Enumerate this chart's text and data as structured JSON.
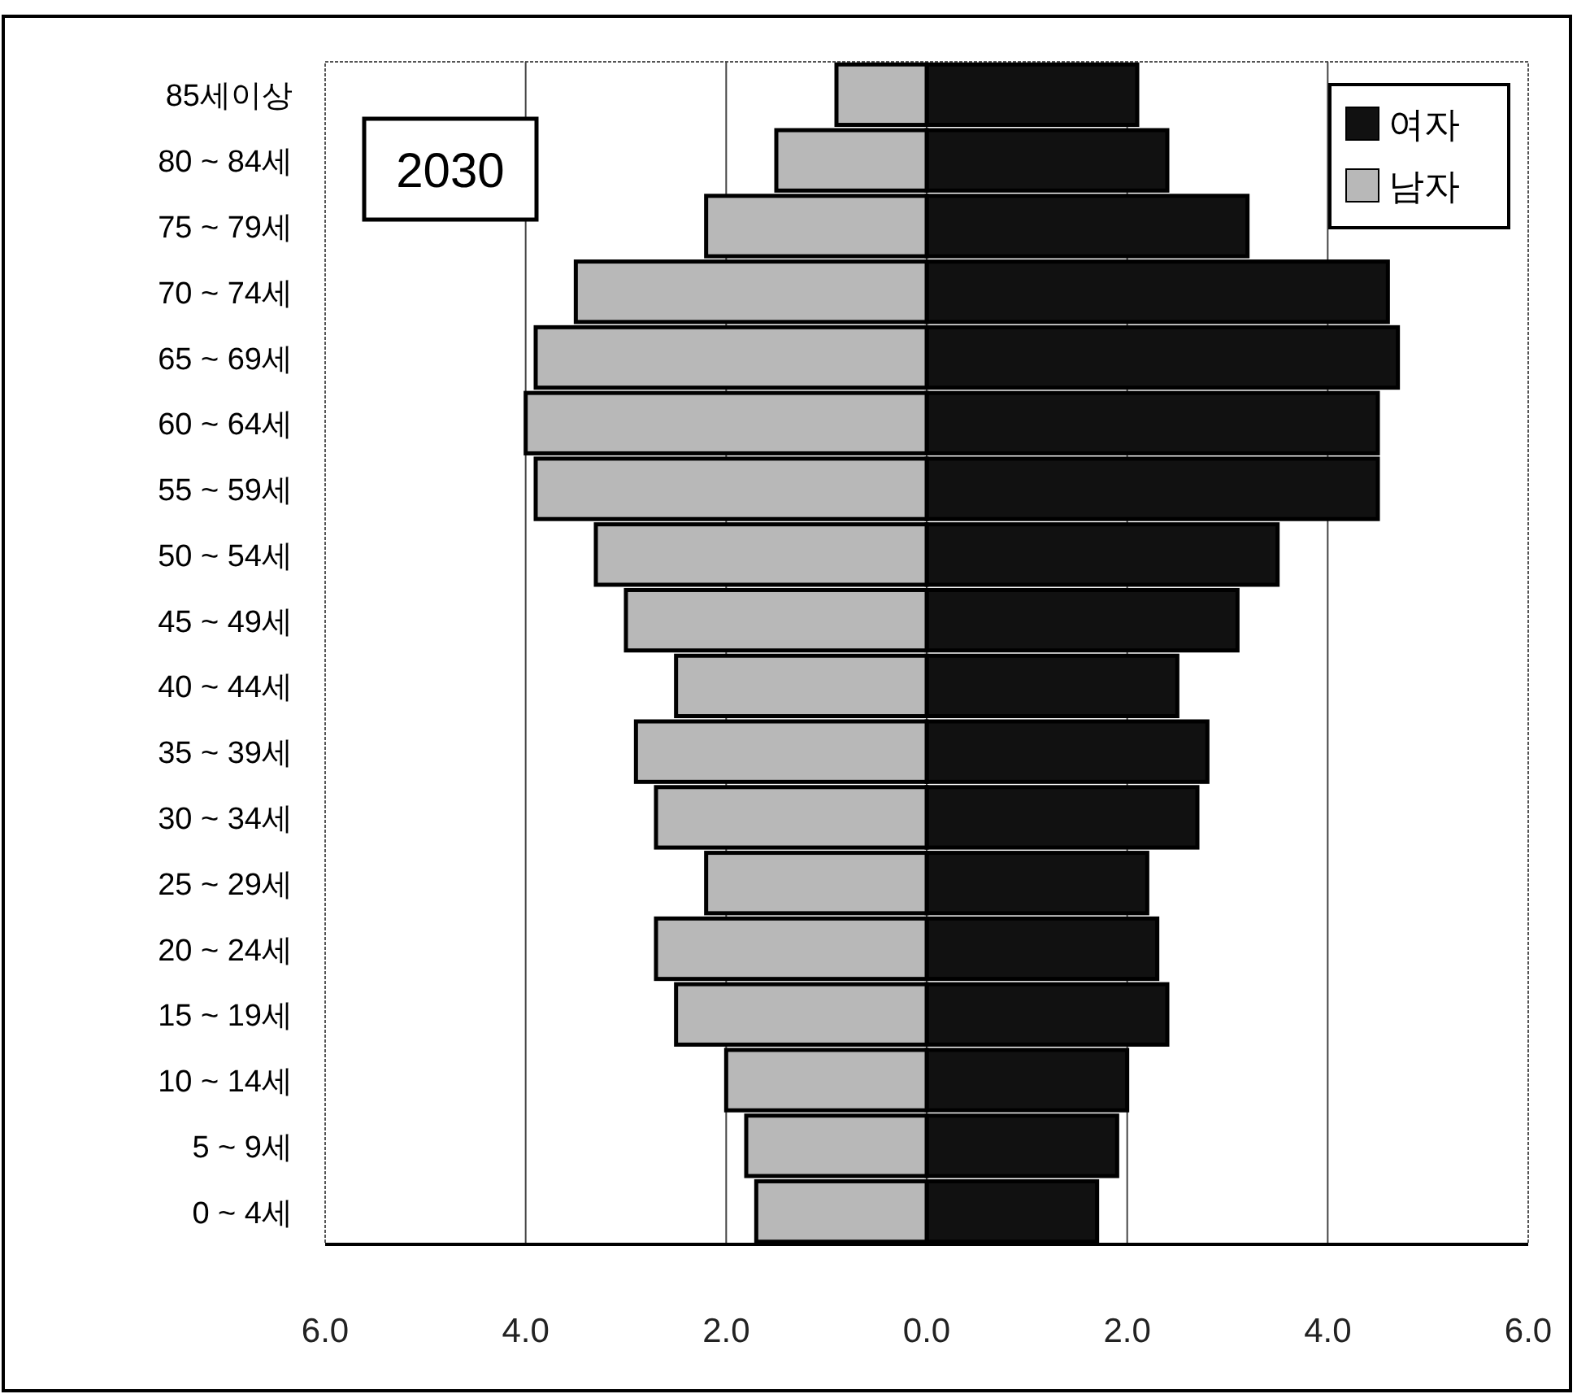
{
  "chart_data": {
    "type": "bar",
    "orientation": "horizontal",
    "stacked": true,
    "categories": [
      "85세이상",
      "80 ~ 84세",
      "75 ~ 79세",
      "70 ~ 74세",
      "65 ~ 69세",
      "60 ~ 64세",
      "55 ~ 59세",
      "50 ~ 54세",
      "45 ~ 49세",
      "40 ~ 44세",
      "35 ~ 39세",
      "30 ~ 34세",
      "25 ~ 29세",
      "20 ~ 24세",
      "15 ~ 19세",
      "10 ~ 14세",
      "5 ~ 9세",
      "0 ~ 4세"
    ],
    "series": [
      {
        "name": "여자",
        "color": "#111111",
        "values": [
          2.1,
          2.4,
          3.2,
          4.6,
          4.7,
          4.5,
          4.5,
          3.5,
          3.1,
          2.5,
          2.8,
          2.7,
          2.2,
          2.3,
          2.4,
          2.0,
          1.9,
          1.7
        ]
      },
      {
        "name": "남자",
        "color": "#b8b8b8",
        "values": [
          -0.9,
          -1.5,
          -2.2,
          -3.5,
          -3.9,
          -4.0,
          -3.9,
          -3.3,
          -3.0,
          -2.5,
          -2.9,
          -2.7,
          -2.2,
          -2.7,
          -2.5,
          -2.0,
          -1.8,
          -1.7
        ]
      }
    ],
    "xlim": [
      -6,
      6
    ],
    "xticks": [
      {
        "value": -6,
        "label": "6.0"
      },
      {
        "value": -4,
        "label": "4.0"
      },
      {
        "value": -2,
        "label": "2.0"
      },
      {
        "value": 0,
        "label": "0.0"
      },
      {
        "value": 2,
        "label": "2.0"
      },
      {
        "value": 4,
        "label": "4.0"
      },
      {
        "value": 6,
        "label": "6.0"
      }
    ],
    "grid": "x",
    "legend": "top right",
    "annotations": [
      "2030"
    ]
  }
}
